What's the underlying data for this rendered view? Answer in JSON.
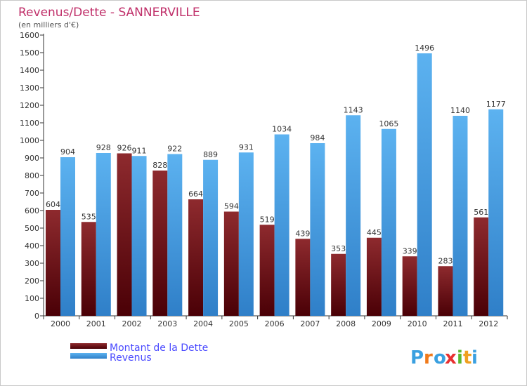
{
  "chart_data": {
    "type": "bar",
    "title": "Revenus/Dette - SANNERVILLE",
    "subtitle": "(en milliers d'€)",
    "categories": [
      "2000",
      "2001",
      "2002",
      "2003",
      "2004",
      "2005",
      "2006",
      "2007",
      "2008",
      "2009",
      "2010",
      "2011",
      "2012"
    ],
    "series": [
      {
        "name": "Montant de la Dette",
        "values": [
          604,
          535,
          926,
          828,
          664,
          594,
          519,
          439,
          353,
          445,
          339,
          283,
          561
        ]
      },
      {
        "name": "Revenus",
        "values": [
          904,
          928,
          911,
          922,
          889,
          931,
          1034,
          984,
          1143,
          1065,
          1496,
          1140,
          1177
        ]
      }
    ],
    "yticks": [
      0,
      100,
      200,
      300,
      400,
      500,
      600,
      700,
      800,
      900,
      1000,
      1100,
      1200,
      1300,
      1400,
      1500,
      1600
    ],
    "ylim": [
      0,
      1600
    ],
    "grid": false,
    "legend_position": "bottom-left",
    "colors": {
      "dette": "#7b1a1f",
      "revenus": "#4aa3e8",
      "title": "#c0306a",
      "legend_text": "#4a4aff"
    }
  },
  "brand": {
    "logo_text": "Proxiti"
  }
}
